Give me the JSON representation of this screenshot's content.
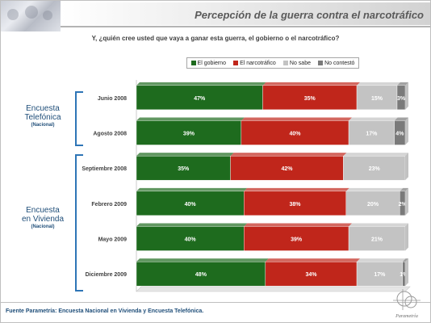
{
  "header": {
    "title": "Percepción de la guerra contra el narcotráfico"
  },
  "question": "Y, ¿quién cree usted que vaya a ganar esta guerra, el gobierno o el narcotráfico?",
  "groups": [
    {
      "title_line1": "Encuesta",
      "title_line2": "Telefónica",
      "subtitle": "(Nacional)"
    },
    {
      "title_line1": "Encuesta",
      "title_line2": "en Vivienda",
      "subtitle": "(Nacional)"
    }
  ],
  "source": "Fuente Parametría: Encuesta Nacional en Vivienda y Encuesta Telefónica.",
  "logo_text": "Parametría",
  "chart_data": {
    "type": "bar",
    "orientation": "horizontal",
    "stacked": "percent",
    "categories": [
      "Junio 2008",
      "Agosto 2008",
      "Septiembre 2008",
      "Febrero 2009",
      "Mayo 2009",
      "Diciembre 2009"
    ],
    "series": [
      {
        "name": "El gobierno",
        "color": "#1e6b1e",
        "values": [
          47,
          39,
          35,
          40,
          40,
          48
        ]
      },
      {
        "name": "El narcotráfico",
        "color": "#c0261b",
        "values": [
          35,
          40,
          42,
          38,
          39,
          34
        ]
      },
      {
        "name": "No sabe",
        "color": "#c3c3c3",
        "values": [
          15,
          17,
          23,
          20,
          21,
          17
        ]
      },
      {
        "name": "No contestó",
        "color": "#7a7a7a",
        "values": [
          3,
          4,
          0,
          2,
          0,
          1
        ]
      }
    ],
    "xlim": [
      0,
      100
    ],
    "grid": false,
    "legend": "top"
  }
}
